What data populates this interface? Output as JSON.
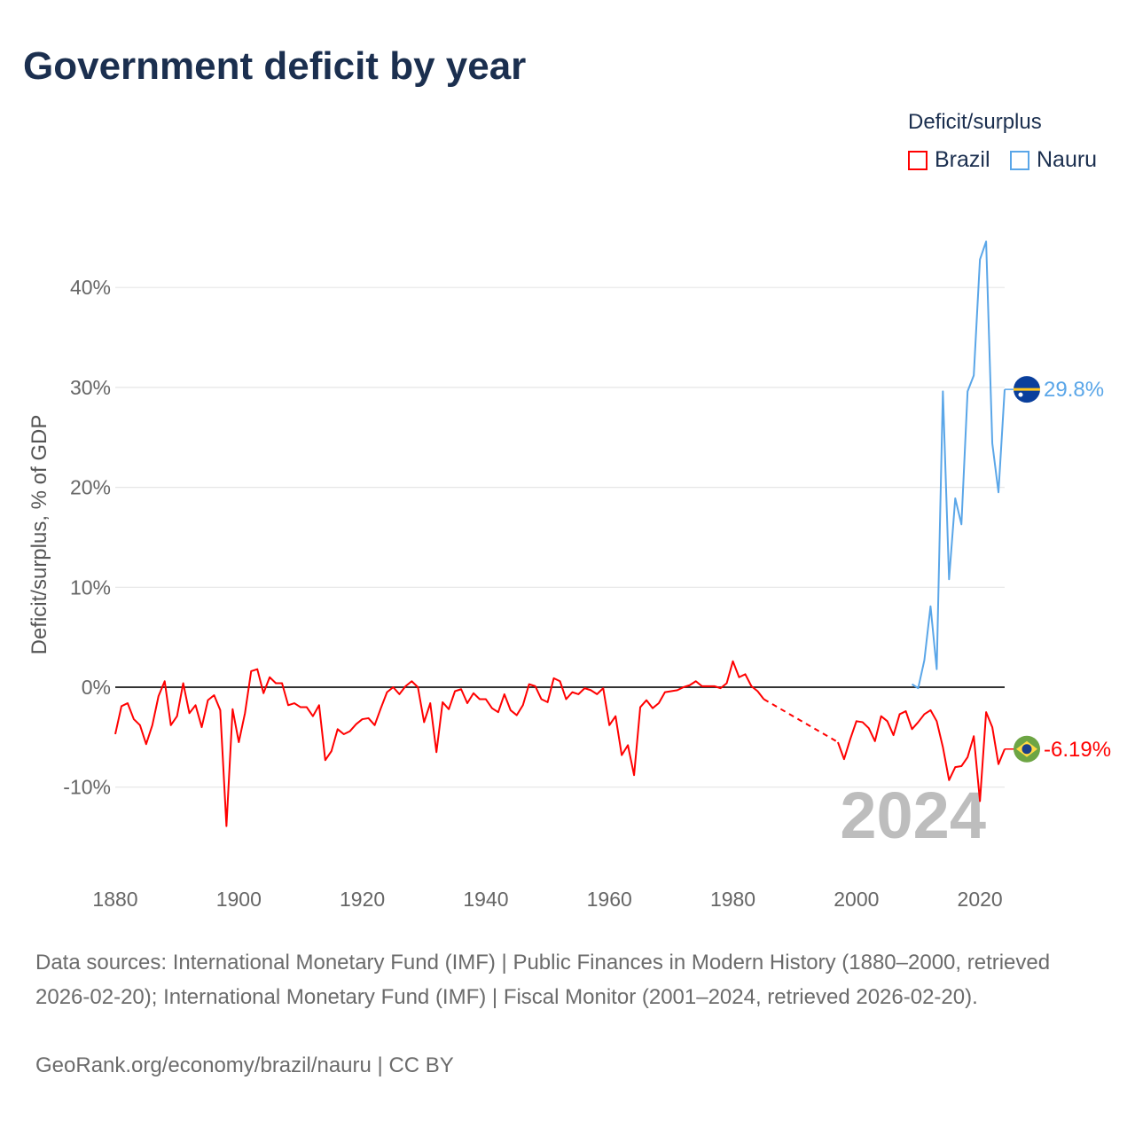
{
  "title": "Government deficit by year",
  "legend": {
    "title": "Deficit/surplus",
    "items": [
      {
        "label": "Brazil",
        "color": "#ff0000"
      },
      {
        "label": "Nauru",
        "color": "#5aa6e8"
      }
    ]
  },
  "chart_data": {
    "type": "line",
    "title": "Government deficit by year",
    "ylabel": "Deficit/surplus, % of GDP",
    "xlabel": "",
    "xlim": [
      1880,
      2024
    ],
    "ylim": [
      -17,
      48
    ],
    "x_ticks": [
      "1880",
      "1900",
      "1920",
      "1940",
      "1960",
      "1980",
      "2000",
      "2020"
    ],
    "y_ticks": [
      {
        "value": 40,
        "label": "40%"
      },
      {
        "value": 30,
        "label": "30%"
      },
      {
        "value": 20,
        "label": "20%"
      },
      {
        "value": 10,
        "label": "10%"
      },
      {
        "value": 0,
        "label": "0%"
      },
      {
        "value": -10,
        "label": "-10%"
      }
    ],
    "grid": true,
    "legend_position": "top-right",
    "year_label": "2024",
    "series": [
      {
        "name": "Brazil",
        "color": "#ff0000",
        "end_label": "-6.19%",
        "start_year": 1880,
        "values": [
          -4.7,
          -1.9,
          -1.6,
          -3.2,
          -3.8,
          -5.7,
          -3.8,
          -0.9,
          0.6,
          -3.8,
          -2.9,
          0.4,
          -2.6,
          -1.8,
          -4.0,
          -1.3,
          -0.8,
          -2.3,
          -13.9,
          -2.2,
          -5.5,
          -2.6,
          1.6,
          1.8,
          -0.6,
          1.0,
          0.4,
          0.4,
          -1.8,
          -1.6,
          -2.0,
          -2.0,
          -2.9,
          -1.8,
          -7.3,
          -6.4,
          -4.2,
          -4.7,
          -4.4,
          -3.7,
          -3.2,
          -3.1,
          -3.8,
          -2.1,
          -0.5,
          0.0,
          -0.7,
          0.1,
          0.6,
          0.0,
          -3.5,
          -1.6,
          -6.5,
          -1.5,
          -2.2,
          -0.4,
          -0.2,
          -1.6,
          -0.6,
          -1.2,
          -1.2,
          -2.1,
          -2.5,
          -0.7,
          -2.3,
          -2.8,
          -1.8,
          0.3,
          0.1,
          -1.2,
          -1.5,
          0.9,
          0.6,
          -1.2,
          -0.5,
          -0.7,
          -0.1,
          -0.3,
          -0.7,
          -0.1,
          -3.8,
          -2.9,
          -6.8,
          -5.8,
          -8.8,
          -2.0,
          -1.3,
          -2.1,
          -1.6,
          -0.5,
          -0.4,
          -0.3,
          0.0,
          0.2,
          0.6,
          0.1,
          0.1,
          0.1,
          -0.1,
          0.4,
          2.6,
          1.0,
          1.3,
          0.1,
          -0.4,
          -1.2,
          null,
          null,
          null,
          null,
          null,
          null,
          null,
          null,
          null,
          null,
          null,
          -5.5,
          -7.2,
          -5.2,
          -3.4,
          -3.5,
          -4.1,
          -5.4,
          -2.9,
          -3.4,
          -4.8,
          -2.7,
          -2.4,
          -4.2,
          -3.5,
          -2.7,
          -2.3,
          -3.4,
          -6.0,
          -9.3,
          -8.0,
          -7.9,
          -7.0,
          -4.9,
          -11.4,
          -2.5,
          -4.0,
          -7.7,
          -6.19
        ]
      },
      {
        "name": "Nauru",
        "color": "#5aa6e8",
        "end_label": "29.8%",
        "start_year": 2009,
        "values": [
          0.3,
          -0.1,
          2.7,
          8.1,
          1.8,
          29.6,
          10.8,
          18.9,
          16.3,
          29.6,
          31.2,
          42.8,
          44.6,
          24.4,
          19.5,
          29.8
        ]
      }
    ]
  },
  "footer": {
    "sources": "Data sources: International Monetary Fund (IMF) | Public Finances in Modern History (1880–2000, retrieved 2026-02-20); International Monetary Fund (IMF) | Fiscal Monitor (2001–2024, retrieved 2026-02-20).",
    "credit": "GeoRank.org/economy/brazil/nauru | CC BY"
  }
}
